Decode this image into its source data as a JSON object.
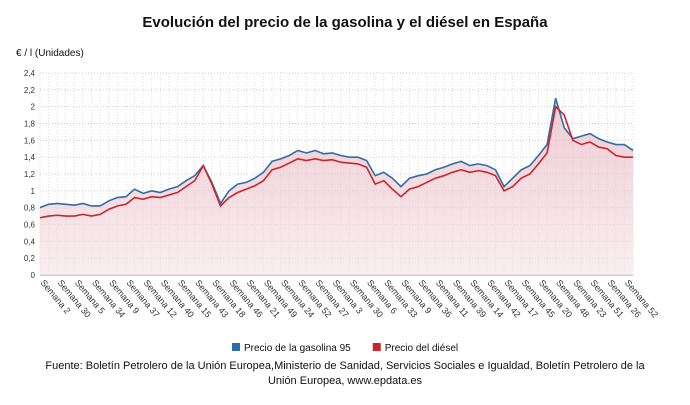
{
  "chart_data": {
    "type": "line",
    "title": "Evolución del precio de la gasolina y el diésel en España",
    "y_axis_label": "€ / l (Unidades)",
    "source": "Fuente: Boletín Petrolero de la Unión Europea,Ministerio de Sanidad, Servicios Sociales e Igualdad, Boletín Petrolero de la Unión Europea, www.epdata.es",
    "categories": [
      "Semana 2",
      null,
      "Semana 30",
      null,
      "Semana 5",
      null,
      "Semana 34",
      null,
      "Semana 9",
      null,
      "Semana 37",
      null,
      "Semana 12",
      null,
      "Semana 40",
      null,
      "Semana 15",
      null,
      "Semana 43",
      null,
      "Semana 18",
      null,
      "Semana 46",
      null,
      "Semana 21",
      null,
      "Semana 49",
      null,
      "Semana 24",
      null,
      "Semana 52",
      null,
      "Semana 27",
      null,
      "Semana 3",
      null,
      "Semana 30",
      null,
      "Semana 6",
      null,
      "Semana 33",
      null,
      "Semana 9",
      null,
      "Semana 36",
      null,
      "Semana 11",
      null,
      "Semana 39",
      null,
      "Semana 14",
      null,
      "Semana 42",
      null,
      "Semana 17",
      null,
      "Semana 45",
      null,
      "Semana 20",
      null,
      "Semana 48",
      null,
      "Semana 23",
      null,
      "Semana 51",
      null,
      "Semana 26",
      null,
      "Semana 52",
      null
    ],
    "series": [
      {
        "name": "Precio de la gasolina 95",
        "color": "#2e6da4",
        "values": [
          0.8,
          0.84,
          0.85,
          0.84,
          0.83,
          0.85,
          0.82,
          0.82,
          0.88,
          0.92,
          0.93,
          1.02,
          0.97,
          1.0,
          0.98,
          1.02,
          1.05,
          1.12,
          1.18,
          1.3,
          1.1,
          0.85,
          1.0,
          1.08,
          1.1,
          1.15,
          1.22,
          1.35,
          1.38,
          1.42,
          1.48,
          1.45,
          1.48,
          1.44,
          1.45,
          1.42,
          1.4,
          1.4,
          1.36,
          1.18,
          1.22,
          1.15,
          1.05,
          1.15,
          1.18,
          1.2,
          1.25,
          1.28,
          1.32,
          1.35,
          1.3,
          1.32,
          1.3,
          1.25,
          1.05,
          1.15,
          1.25,
          1.3,
          1.42,
          1.55,
          2.1,
          1.75,
          1.62,
          1.65,
          1.68,
          1.62,
          1.58,
          1.55,
          1.55,
          1.48
        ]
      },
      {
        "name": "Precio del diésel",
        "color": "#c8262b",
        "values": [
          0.68,
          0.7,
          0.71,
          0.7,
          0.7,
          0.72,
          0.7,
          0.72,
          0.78,
          0.82,
          0.84,
          0.92,
          0.9,
          0.93,
          0.92,
          0.95,
          0.98,
          1.05,
          1.12,
          1.3,
          1.08,
          0.82,
          0.92,
          0.98,
          1.02,
          1.06,
          1.12,
          1.25,
          1.28,
          1.33,
          1.38,
          1.36,
          1.38,
          1.36,
          1.37,
          1.34,
          1.33,
          1.32,
          1.28,
          1.08,
          1.12,
          1.02,
          0.93,
          1.02,
          1.05,
          1.1,
          1.15,
          1.18,
          1.22,
          1.25,
          1.22,
          1.24,
          1.22,
          1.18,
          1.0,
          1.05,
          1.15,
          1.2,
          1.32,
          1.45,
          2.0,
          1.9,
          1.6,
          1.55,
          1.58,
          1.52,
          1.5,
          1.42,
          1.4,
          1.4
        ]
      }
    ],
    "ylim": [
      0,
      2.4
    ],
    "yticks": [
      0,
      {
        "value": 0.2,
        "label": "0,2"
      },
      {
        "value": 0.4,
        "label": "0,4"
      },
      {
        "value": 0.6,
        "label": "0,6"
      },
      {
        "value": 0.8,
        "label": "0,8"
      },
      1,
      {
        "value": 1.2,
        "label": "1,2"
      },
      {
        "value": 1.4,
        "label": "1,4"
      },
      {
        "value": 1.6,
        "label": "1,6"
      },
      {
        "value": 1.8,
        "label": "1,8"
      },
      2,
      {
        "value": 2.2,
        "label": "2,2"
      },
      {
        "value": 2.4,
        "label": "2,4"
      }
    ],
    "grid": true,
    "legend": "bottom"
  }
}
